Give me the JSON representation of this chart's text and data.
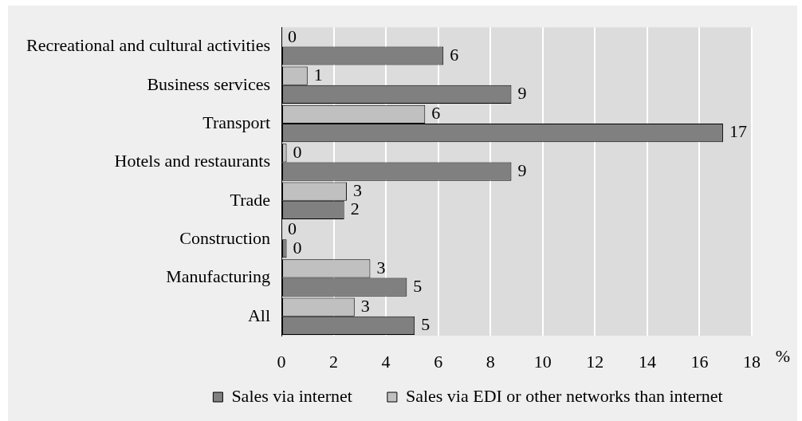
{
  "chart_data": {
    "type": "bar",
    "orientation": "horizontal",
    "categories": [
      "Recreational and cultural activities",
      "Business services",
      "Transport",
      "Hotels and restaurants",
      "Trade",
      "Construction",
      "Manufacturing",
      "All"
    ],
    "series": [
      {
        "name": "Sales via internet",
        "color": "#808080",
        "values": [
          6.2,
          8.8,
          16.9,
          8.8,
          2.4,
          0.2,
          4.8,
          5.1
        ],
        "value_labels": [
          "6",
          "9",
          "17",
          "9",
          "2",
          "0",
          "5",
          "5"
        ]
      },
      {
        "name": "Sales via EDI or other networks than internet",
        "color": "#c0c0c0",
        "values": [
          0,
          1.0,
          5.5,
          0.2,
          2.5,
          0,
          3.4,
          2.8
        ],
        "value_labels": [
          "0",
          "1",
          "6",
          "0",
          "3",
          "0",
          "3",
          "3"
        ]
      }
    ],
    "xlabel": "%",
    "xlim": [
      0,
      18
    ],
    "xticks": [
      0,
      2,
      4,
      6,
      8,
      10,
      12,
      14,
      16,
      18
    ],
    "grid": "x",
    "legend": "bottom"
  }
}
